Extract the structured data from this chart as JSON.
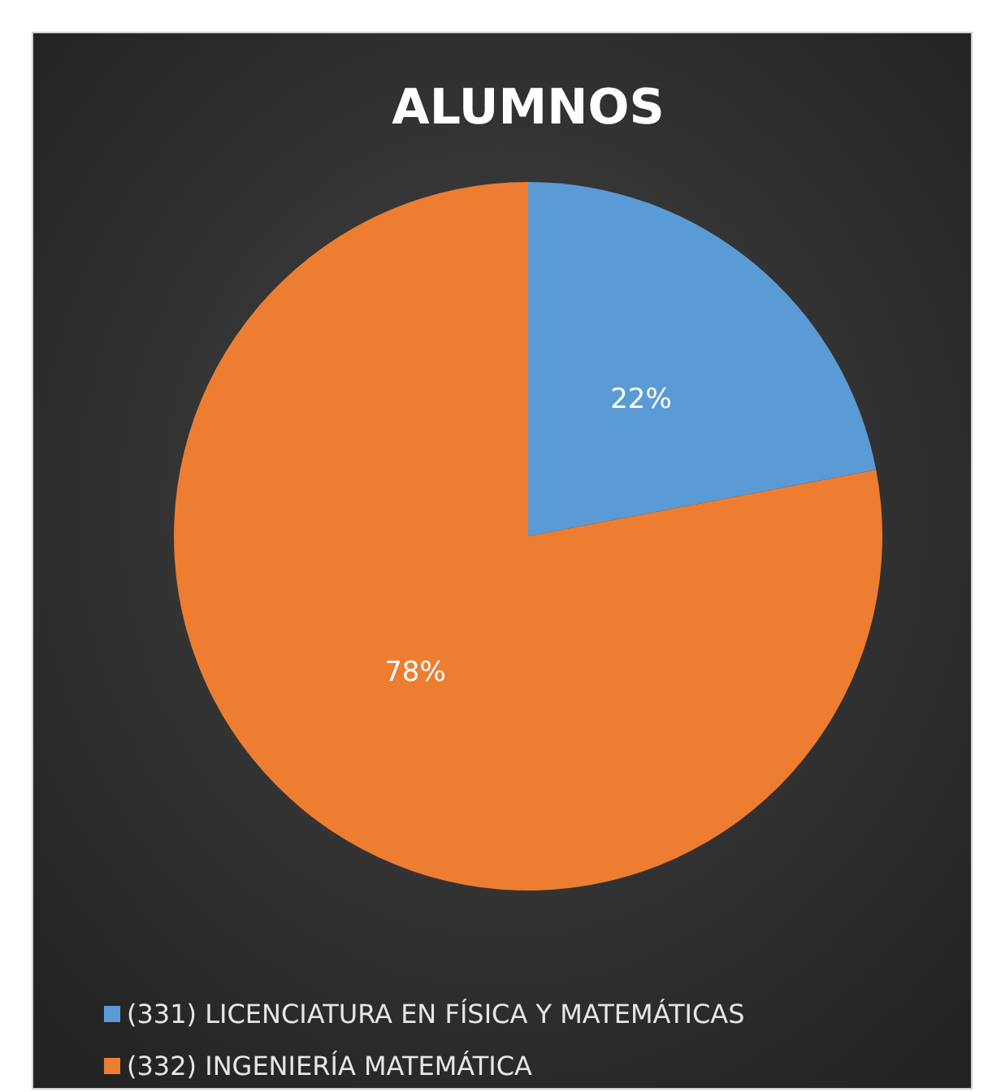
{
  "chart_data": {
    "type": "pie",
    "title": "ALUMNOS",
    "categories": [
      "(331) LICENCIATURA EN FÍSICA Y MATEMÁTICAS",
      "(332) INGENIERÍA MATEMÁTICA"
    ],
    "values": [
      22,
      78
    ],
    "colors": [
      "#5b9bd5",
      "#ed7d31"
    ],
    "value_labels": [
      "22%",
      "78%"
    ],
    "legend": "bottom"
  }
}
